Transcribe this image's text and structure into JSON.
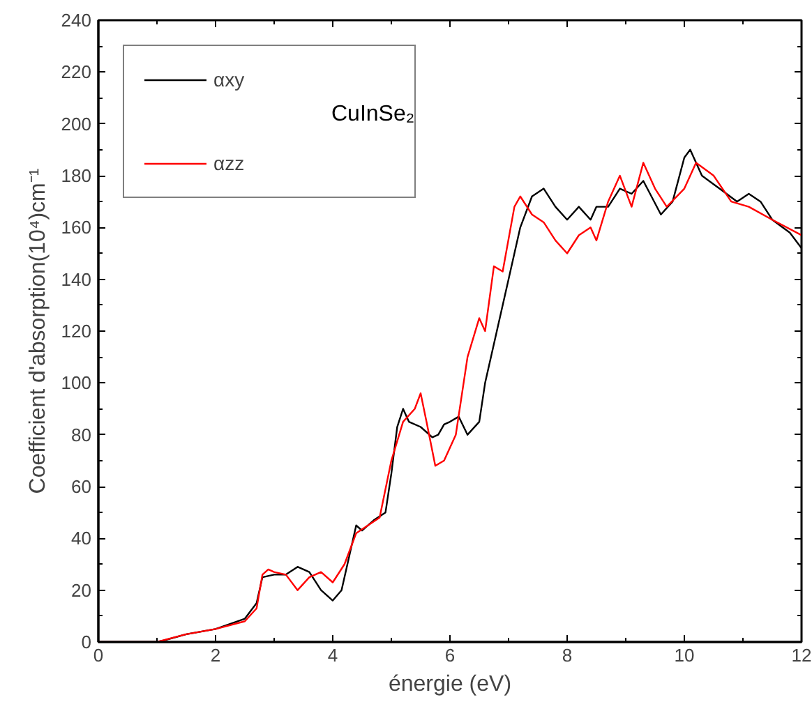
{
  "chart_data": {
    "type": "line",
    "xlabel": "énergie (eV)",
    "ylabel": "Coefficient d'absorption(10⁴)cm⁻¹",
    "xlim": [
      0,
      12
    ],
    "ylim": [
      0,
      240
    ],
    "xticks": [
      0,
      2,
      4,
      6,
      8,
      10,
      12
    ],
    "yticks": [
      0,
      20,
      40,
      60,
      80,
      100,
      120,
      140,
      160,
      180,
      200,
      220,
      240
    ],
    "grid": false,
    "legend": "top left",
    "marker": "none",
    "line_style": "solid",
    "annotations": [
      "CuInSe₂"
    ],
    "series": [
      {
        "name": "αxy",
        "color": "#000000",
        "x": [
          0,
          1.0,
          1.1,
          1.5,
          2.0,
          2.5,
          2.7,
          2.8,
          3.0,
          3.2,
          3.4,
          3.6,
          3.8,
          4.0,
          4.15,
          4.3,
          4.4,
          4.5,
          4.7,
          4.9,
          5.0,
          5.1,
          5.2,
          5.3,
          5.5,
          5.7,
          5.8,
          5.9,
          6.0,
          6.15,
          6.3,
          6.5,
          6.6,
          6.8,
          7.0,
          7.2,
          7.4,
          7.6,
          7.8,
          8.0,
          8.2,
          8.4,
          8.5,
          8.7,
          8.9,
          9.1,
          9.3,
          9.6,
          9.8,
          10.0,
          10.1,
          10.3,
          10.6,
          10.9,
          11.1,
          11.3,
          11.5,
          11.8,
          12
        ],
        "values": [
          0,
          0,
          0.5,
          3,
          5,
          9,
          15,
          25,
          26,
          26,
          29,
          27,
          20,
          16,
          20,
          35,
          45,
          43,
          47,
          50,
          65,
          83,
          90,
          85,
          83,
          79,
          80,
          84,
          85,
          87,
          80,
          85,
          100,
          120,
          140,
          160,
          172,
          175,
          168,
          163,
          168,
          163,
          168,
          168,
          175,
          173,
          178,
          165,
          170,
          187,
          190,
          180,
          175,
          170,
          173,
          170,
          163,
          158,
          152
        ]
      },
      {
        "name": "αzz",
        "color": "#ff0000",
        "x": [
          0,
          1.0,
          1.5,
          2.0,
          2.5,
          2.7,
          2.8,
          2.9,
          3.0,
          3.2,
          3.4,
          3.6,
          3.8,
          4.0,
          4.2,
          4.4,
          4.6,
          4.8,
          5.0,
          5.2,
          5.4,
          5.5,
          5.6,
          5.75,
          5.9,
          6.1,
          6.3,
          6.5,
          6.6,
          6.75,
          6.9,
          7.1,
          7.2,
          7.4,
          7.6,
          7.8,
          8.0,
          8.2,
          8.4,
          8.5,
          8.7,
          8.9,
          9.1,
          9.3,
          9.5,
          9.7,
          10.0,
          10.2,
          10.5,
          10.8,
          11.1,
          11.5,
          12
        ],
        "values": [
          0,
          0,
          3,
          5,
          8,
          13,
          26,
          28,
          27,
          26,
          20,
          25,
          27,
          23,
          30,
          42,
          45,
          48,
          70,
          85,
          90,
          96,
          85,
          68,
          70,
          80,
          110,
          125,
          120,
          145,
          143,
          168,
          172,
          165,
          162,
          155,
          150,
          157,
          160,
          155,
          170,
          180,
          168,
          185,
          175,
          168,
          175,
          185,
          180,
          170,
          168,
          163,
          157
        ]
      }
    ]
  }
}
